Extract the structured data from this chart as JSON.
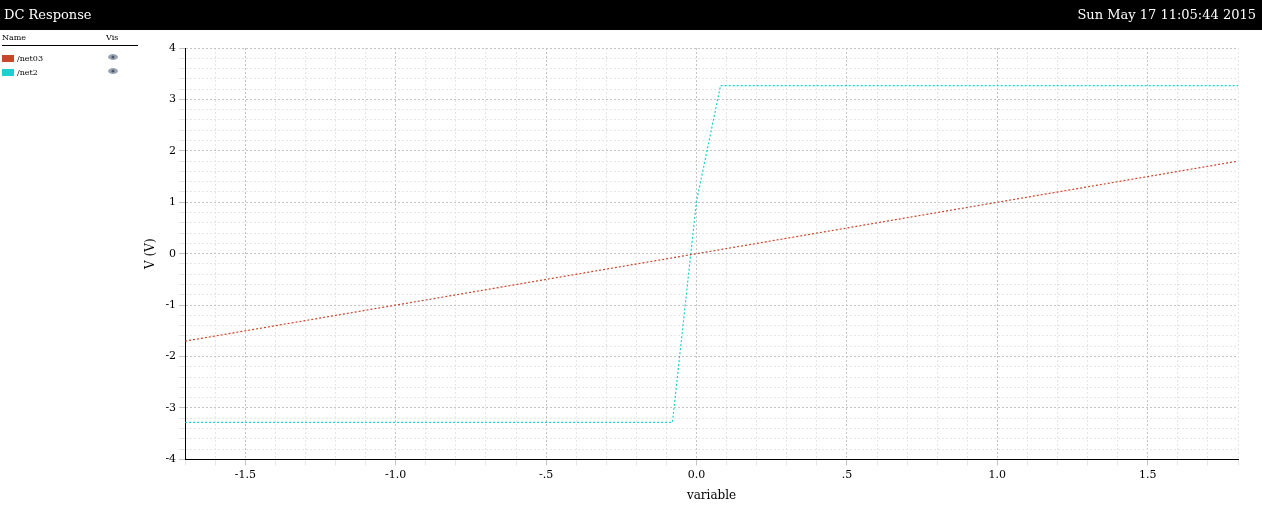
{
  "chart_data": {
    "type": "line",
    "title": "DC Response",
    "legend_title": "Name",
    "annotations": [
      "Sun May 17 11:05:44 2015",
      "Vis"
    ],
    "xlabel": "variable",
    "ylabel": "V (V)",
    "series": [
      {
        "name": "/net03",
        "color": "#c8462a",
        "x": [
          -1.7,
          1.8
        ],
        "values": [
          -1.7,
          1.8
        ]
      },
      {
        "name": "/net2",
        "color": "#1ecfcf",
        "x": [
          -1.7,
          -0.08,
          0,
          0.08,
          1.8
        ],
        "values": [
          -3.28,
          -3.28,
          1.02,
          3.27,
          3.27
        ]
      }
    ],
    "xlim": [
      -1.7,
      1.8
    ],
    "ylim": [
      -4,
      4
    ],
    "xticks": [
      {
        "value": -1.7,
        "label": null
      },
      {
        "value": -1.6,
        "label": null
      },
      -1.5,
      {
        "value": -1.4,
        "label": null
      },
      {
        "value": -1.3,
        "label": null
      },
      {
        "value": -1.2,
        "label": null
      },
      {
        "value": -1.1,
        "label": null
      },
      {
        "value": -1.0,
        "label": "-1.0"
      },
      {
        "value": -0.9,
        "label": null
      },
      {
        "value": -0.8,
        "label": null
      },
      {
        "value": -0.7,
        "label": null
      },
      {
        "value": -0.6,
        "label": null
      },
      {
        "value": -0.5,
        "label": "-.5"
      },
      {
        "value": -0.4,
        "label": null
      },
      {
        "value": -0.3,
        "label": null
      },
      {
        "value": -0.2,
        "label": null
      },
      {
        "value": -0.1,
        "label": null
      },
      {
        "value": 0,
        "label": "0.0"
      },
      {
        "value": 0.1,
        "label": null
      },
      {
        "value": 0.2,
        "label": null
      },
      {
        "value": 0.3,
        "label": null
      },
      {
        "value": 0.4,
        "label": null
      },
      {
        "value": 0.5,
        "label": ".5"
      },
      {
        "value": 0.6,
        "label": null
      },
      {
        "value": 0.7,
        "label": null
      },
      {
        "value": 0.8,
        "label": null
      },
      {
        "value": 0.9,
        "label": null
      },
      {
        "value": 1.0,
        "label": "1.0"
      },
      {
        "value": 1.1,
        "label": null
      },
      {
        "value": 1.2,
        "label": null
      },
      {
        "value": 1.3,
        "label": null
      },
      {
        "value": 1.4,
        "label": null
      },
      1.5,
      {
        "value": 1.6,
        "label": null
      },
      {
        "value": 1.7,
        "label": null
      },
      {
        "value": 1.8,
        "label": null
      }
    ],
    "yticks": [
      -4,
      {
        "value": -3.8,
        "label": null
      },
      {
        "value": -3.6,
        "label": null
      },
      {
        "value": -3.4,
        "label": null
      },
      {
        "value": -3.2,
        "label": null
      },
      -3,
      {
        "value": -2.8,
        "label": null
      },
      {
        "value": -2.6,
        "label": null
      },
      {
        "value": -2.4,
        "label": null
      },
      {
        "value": -2.2,
        "label": null
      },
      -2,
      {
        "value": -1.8,
        "label": null
      },
      {
        "value": -1.6,
        "label": null
      },
      {
        "value": -1.4,
        "label": null
      },
      {
        "value": -1.2,
        "label": null
      },
      -1,
      {
        "value": -0.8,
        "label": null
      },
      {
        "value": -0.6,
        "label": null
      },
      {
        "value": -0.4,
        "label": null
      },
      {
        "value": -0.2,
        "label": null
      },
      0,
      {
        "value": 0.2,
        "label": null
      },
      {
        "value": 0.4,
        "label": null
      },
      {
        "value": 0.6,
        "label": null
      },
      {
        "value": 0.8,
        "label": null
      },
      1,
      {
        "value": 1.2,
        "label": null
      },
      {
        "value": 1.4,
        "label": null
      },
      {
        "value": 1.6,
        "label": null
      },
      {
        "value": 1.8,
        "label": null
      },
      2,
      {
        "value": 2.2,
        "label": null
      },
      {
        "value": 2.4,
        "label": null
      },
      {
        "value": 2.6,
        "label": null
      },
      {
        "value": 2.8,
        "label": null
      },
      3,
      {
        "value": 3.2,
        "label": null
      },
      {
        "value": 3.4,
        "label": null
      },
      {
        "value": 3.6,
        "label": null
      },
      {
        "value": 3.8,
        "label": null
      },
      4
    ],
    "grid": true,
    "legend": "top left",
    "line_style": "dotted"
  }
}
